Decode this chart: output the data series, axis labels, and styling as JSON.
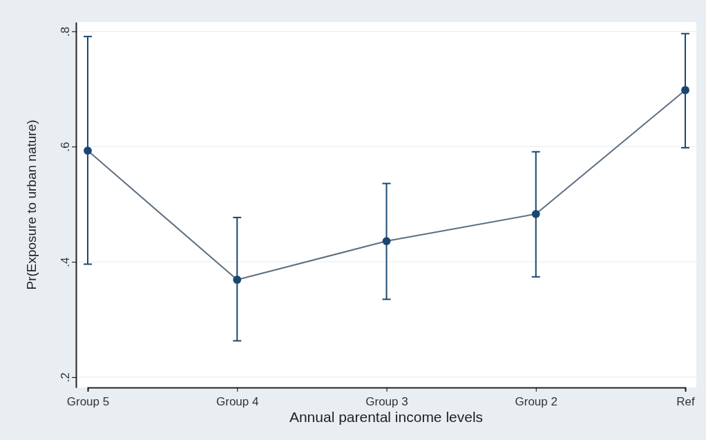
{
  "chart_data": {
    "type": "line",
    "xlabel": "Annual parental income levels",
    "ylabel": "Pr(Exposure to urban nature)",
    "categories": [
      "Group 5",
      "Group 4",
      "Group 3",
      "Group 2",
      "Ref"
    ],
    "series": [
      {
        "color": "#1a476f",
        "values": [
          0.593,
          0.369,
          0.436,
          0.483,
          0.698
        ],
        "errors": [
          [
            0.396,
            0.791
          ],
          [
            0.263,
            0.477
          ],
          [
            0.335,
            0.536
          ],
          [
            0.374,
            0.591
          ],
          [
            0.598,
            0.796
          ]
        ]
      }
    ],
    "ylim": [
      0.182,
      0.816
    ],
    "yticks": [
      {
        "value": 0.2,
        "label": ".2"
      },
      {
        "value": 0.4,
        "label": ".4"
      },
      {
        "value": 0.6,
        "label": ".6"
      },
      {
        "value": 0.8,
        "label": ".8"
      }
    ],
    "grid": "y",
    "marker": "circle",
    "line_style": "solid"
  }
}
